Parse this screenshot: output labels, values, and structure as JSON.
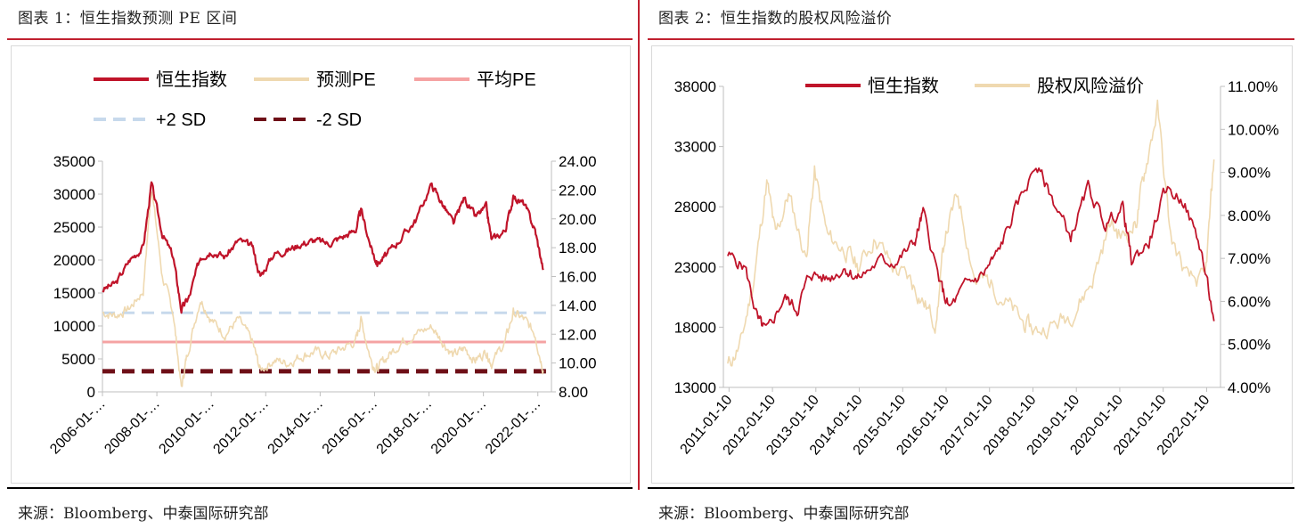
{
  "charts": [
    {
      "title": "图表 1：恒生指数预测 PE 区间",
      "source": "来源：Bloomberg、中泰国际研究部"
    },
    {
      "title": "图表 2：恒生指数的股权风险溢价",
      "source": "来源：Bloomberg、中泰国际研究部"
    }
  ],
  "colors": {
    "hsi": "#c0142a",
    "beige": "#efd9b0",
    "avg": "#f5a3a3",
    "plus2": "#c7d9ec",
    "minus2": "#6e0f17",
    "accent": "#c0202f"
  },
  "chart_data": [
    {
      "type": "line",
      "title": "",
      "legend": [
        "恒生指数",
        "预测PE",
        "平均PE",
        "+2 SD",
        "-2 SD"
      ],
      "legend_placement": "top",
      "x_tick_labels": [
        "2006-01-…",
        "2008-01-…",
        "2010-01-…",
        "2012-01-…",
        "2014-01-…",
        "2016-01-…",
        "2018-01-…",
        "2020-01-…",
        "2022-01-…"
      ],
      "y_left": {
        "ylim": [
          0,
          35000
        ],
        "ticks": [
          "0",
          "5000",
          "10000",
          "15000",
          "20000",
          "25000",
          "30000",
          "35000"
        ]
      },
      "y_right": {
        "ylim": [
          8.0,
          24.0
        ],
        "ticks": [
          "8.00",
          "10.00",
          "12.00",
          "14.00",
          "16.00",
          "18.00",
          "20.00",
          "22.00",
          "24.00"
        ]
      },
      "series": [
        {
          "name": "恒生指数",
          "axis": "left",
          "x": [
            2006.0,
            2006.5,
            2007.0,
            2007.5,
            2007.8,
            2008.2,
            2008.6,
            2008.9,
            2009.2,
            2009.6,
            2010.0,
            2010.5,
            2011.0,
            2011.5,
            2011.8,
            2012.3,
            2012.8,
            2013.3,
            2013.8,
            2014.3,
            2014.8,
            2015.3,
            2015.5,
            2015.9,
            2016.1,
            2016.5,
            2017.0,
            2017.5,
            2018.1,
            2018.5,
            2018.9,
            2019.3,
            2019.7,
            2020.1,
            2020.3,
            2020.8,
            2021.1,
            2021.5,
            2021.9,
            2022.2
          ],
          "values": [
            15500,
            16500,
            20000,
            22000,
            31500,
            24000,
            20500,
            12500,
            14500,
            20500,
            21500,
            20500,
            23000,
            22000,
            17500,
            21000,
            21500,
            22500,
            23000,
            22500,
            23500,
            24500,
            27500,
            21500,
            19500,
            21000,
            23500,
            26000,
            31500,
            28500,
            25500,
            29500,
            26500,
            28000,
            23000,
            24500,
            29500,
            28500,
            24500,
            18500
          ]
        },
        {
          "name": "预测PE",
          "axis": "right",
          "x": [
            2006.0,
            2006.5,
            2007.0,
            2007.5,
            2007.8,
            2008.2,
            2008.6,
            2008.9,
            2009.1,
            2009.6,
            2010.0,
            2010.5,
            2011.0,
            2011.5,
            2011.8,
            2012.3,
            2012.8,
            2013.3,
            2013.8,
            2014.3,
            2014.8,
            2015.3,
            2015.5,
            2015.9,
            2016.1,
            2016.5,
            2017.0,
            2017.5,
            2018.1,
            2018.5,
            2018.9,
            2019.3,
            2019.7,
            2020.1,
            2020.3,
            2020.8,
            2021.1,
            2021.5,
            2021.9,
            2022.2
          ],
          "values": [
            13.5,
            13.3,
            13.8,
            15.0,
            22.3,
            16.0,
            13.5,
            8.2,
            10.5,
            14.5,
            13.0,
            12.0,
            13.0,
            11.5,
            9.5,
            10.2,
            10.0,
            10.5,
            10.8,
            10.5,
            11.0,
            11.5,
            13.0,
            10.0,
            9.6,
            10.5,
            11.5,
            12.0,
            12.5,
            11.5,
            10.5,
            11.0,
            10.2,
            10.8,
            10.0,
            11.5,
            13.5,
            13.0,
            12.0,
            9.5
          ]
        },
        {
          "name": "平均PE",
          "axis": "right",
          "x": [
            2006.0,
            2022.3
          ],
          "values": [
            11.46,
            11.46
          ]
        },
        {
          "name": "+2 SD",
          "axis": "right",
          "x": [
            2006.0,
            2022.3
          ],
          "values": [
            13.48,
            13.48
          ]
        },
        {
          "name": "-2 SD",
          "axis": "right",
          "x": [
            2006.0,
            2022.3
          ],
          "values": [
            9.43,
            9.43
          ]
        }
      ]
    },
    {
      "type": "line",
      "title": "",
      "legend": [
        "恒生指数",
        "股权风险溢价"
      ],
      "legend_placement": "top",
      "x_tick_labels": [
        "2011-01-10",
        "2012-01-10",
        "2013-01-10",
        "2014-01-10",
        "2015-01-10",
        "2016-01-10",
        "2017-01-10",
        "2018-01-10",
        "2019-01-10",
        "2020-01-10",
        "2021-01-10",
        "2022-01-10"
      ],
      "y_left": {
        "ylim": [
          13000,
          38000
        ],
        "ticks": [
          "13000",
          "18000",
          "23000",
          "28000",
          "33000",
          "38000"
        ]
      },
      "y_right": {
        "ylim": [
          4.0,
          11.0
        ],
        "ticks": [
          "4.00%",
          "5.00%",
          "6.00%",
          "7.00%",
          "8.00%",
          "9.00%",
          "10.00%",
          "11.00%"
        ]
      },
      "series": [
        {
          "name": "恒生指数",
          "axis": "left",
          "x": [
            2011.0,
            2011.4,
            2011.7,
            2011.9,
            2012.3,
            2012.6,
            2012.9,
            2013.3,
            2013.7,
            2014.0,
            2014.5,
            2014.9,
            2015.3,
            2015.5,
            2015.9,
            2016.1,
            2016.5,
            2016.9,
            2017.2,
            2017.6,
            2018.1,
            2018.5,
            2018.9,
            2019.3,
            2019.7,
            2020.1,
            2020.3,
            2020.7,
            2021.1,
            2021.5,
            2021.9,
            2022.2
          ],
          "values": [
            24000,
            23000,
            18500,
            17500,
            20500,
            19500,
            22500,
            22000,
            23000,
            22000,
            23500,
            23500,
            25000,
            27500,
            21500,
            19500,
            21500,
            22500,
            24000,
            27500,
            31500,
            28500,
            25500,
            29500,
            26500,
            28000,
            23500,
            25000,
            29500,
            28500,
            24500,
            18500
          ]
        },
        {
          "name": "股权风险溢价",
          "axis": "right",
          "x": [
            2011.0,
            2011.3,
            2011.6,
            2011.9,
            2012.1,
            2012.4,
            2012.8,
            2013.0,
            2013.3,
            2013.7,
            2014.0,
            2014.4,
            2014.8,
            2015.2,
            2015.5,
            2015.8,
            2016.0,
            2016.3,
            2016.7,
            2017.0,
            2017.4,
            2017.8,
            2018.1,
            2018.6,
            2019.0,
            2019.4,
            2019.8,
            2020.1,
            2020.4,
            2020.6,
            2020.9,
            2021.2,
            2021.6,
            2022.0,
            2022.2
          ],
          "values": [
            4.5,
            5.0,
            6.5,
            8.8,
            7.5,
            8.5,
            7.0,
            9.0,
            7.5,
            7.2,
            6.8,
            7.5,
            6.8,
            6.5,
            6.0,
            5.5,
            7.5,
            8.5,
            6.5,
            6.5,
            6.0,
            5.5,
            5.3,
            5.5,
            5.8,
            6.5,
            7.8,
            7.5,
            7.8,
            9.0,
            10.5,
            7.5,
            6.5,
            6.5,
            9.3
          ]
        }
      ]
    }
  ]
}
